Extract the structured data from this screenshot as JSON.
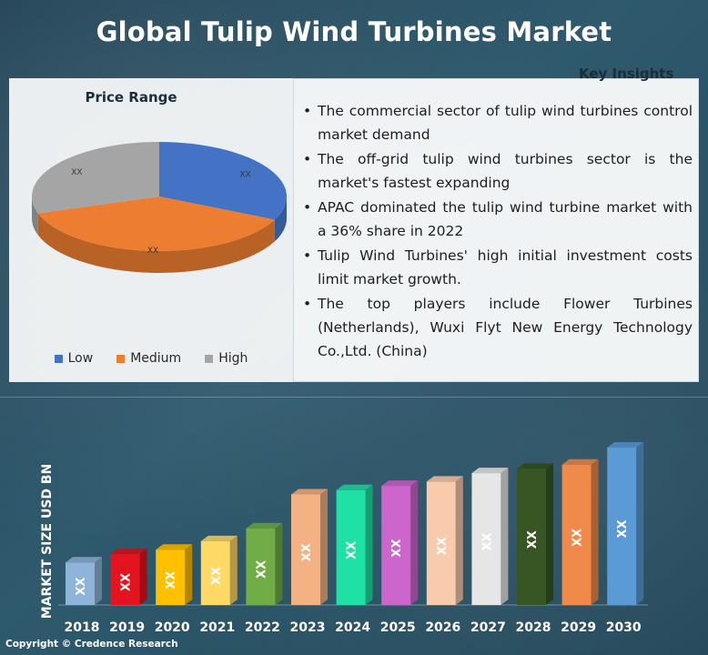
{
  "title": "Global Tulip Wind Turbines Market",
  "insights": {
    "heading": "Key Insights",
    "items": [
      "The commercial sector of tulip wind turbines control market demand",
      "The off-grid tulip wind turbines sector is the market's fastest expanding",
      "APAC dominated the tulip wind turbine market with a 36% share in 2022",
      "Tulip Wind Turbines' high initial investment costs limit market growth.",
      "The top players include Flower Turbines (Netherlands), Wuxi Flyt New Energy Technology Co.,Ltd. (China)"
    ]
  },
  "copyright": "Copyright © Credence Research",
  "chart_data": [
    {
      "type": "pie",
      "title": "Price Range",
      "legend_position": "bottom",
      "slices": [
        {
          "label": "Low",
          "value": 32,
          "data_label": "XX",
          "color": "#4472C4"
        },
        {
          "label": "Medium",
          "value": 38,
          "data_label": "XX",
          "color": "#ED7D31"
        },
        {
          "label": "High",
          "value": 30,
          "data_label": "XX",
          "color": "#A5A5A5"
        }
      ]
    },
    {
      "type": "bar",
      "title": "",
      "xlabel": "",
      "ylabel": "MARKET SIZE USD BN",
      "categories": [
        "2018",
        "2019",
        "2020",
        "2021",
        "2022",
        "2023",
        "2024",
        "2025",
        "2026",
        "2027",
        "2028",
        "2029",
        "2030"
      ],
      "values": [
        1.0,
        1.2,
        1.3,
        1.5,
        1.8,
        2.6,
        2.7,
        2.8,
        2.9,
        3.1,
        3.2,
        3.3,
        3.7
      ],
      "data_labels": [
        "XX",
        "XX",
        "XX",
        "XX",
        "XX",
        "XX",
        "XX",
        "XX",
        "XX",
        "XX",
        "XX",
        "XX",
        "XX"
      ],
      "colors": [
        "#8FB4D9",
        "#E3141F",
        "#FFC000",
        "#FFD966",
        "#70AD47",
        "#F4B183",
        "#1FE0A5",
        "#CC66CC",
        "#F8CBAD",
        "#E7E6E6",
        "#375623",
        "#F08A4B",
        "#5B9BD5"
      ],
      "ylim": [
        0,
        4
      ]
    }
  ]
}
